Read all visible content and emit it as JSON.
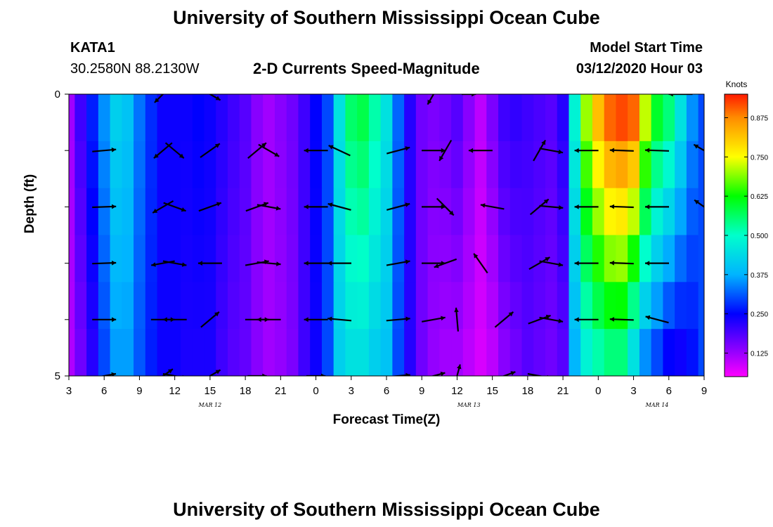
{
  "header": {
    "title": "University of Southern Mississippi Ocean Cube",
    "station_id": "KATA1",
    "station_coords": "30.2580N 88.2130W",
    "plot_title": "2-D Currents Speed-Magnitude",
    "model_start_label": "Model Start Time",
    "model_start_value": "03/12/2020 Hour 03"
  },
  "footer": {
    "title": "University of Southern Mississippi Ocean Cube"
  },
  "chart_data": {
    "type": "heatmap",
    "title": "2-D Currents Speed-Magnitude",
    "xlabel": "Forecast Time(Z)",
    "ylabel": "Depth (ft)",
    "x_tick_labels": [
      "3",
      "6",
      "9",
      "12",
      "15",
      "18",
      "21",
      "0",
      "3",
      "6",
      "9",
      "12",
      "15",
      "18",
      "21",
      "0",
      "3",
      "6",
      "9"
    ],
    "date_labels": [
      {
        "label": "MAR 12",
        "hours": 12
      },
      {
        "label": "MAR 13",
        "hours": 34
      },
      {
        "label": "MAR 14",
        "hours": 50
      }
    ],
    "xlim_hours_from_start": [
      0,
      54
    ],
    "y_tick_labels": [
      "0",
      "5"
    ],
    "ylim_ft": [
      0,
      5
    ],
    "depth_levels_ft": [
      0,
      1,
      2,
      3,
      4,
      5
    ],
    "colorbar": {
      "label": "Knots",
      "ticks": [
        "0.125",
        "0.250",
        "0.375",
        "0.500",
        "0.625",
        "0.750",
        "0.875"
      ],
      "range": [
        0.05,
        0.95
      ]
    },
    "speed_profile": {
      "hours": [
        0,
        1,
        2,
        3,
        4,
        5,
        6,
        7,
        8,
        9,
        10,
        11,
        12,
        13,
        14,
        15,
        16,
        17,
        18,
        19,
        20,
        21,
        22,
        23,
        24,
        25,
        26,
        27,
        28,
        29,
        30,
        31,
        32,
        33,
        34,
        35,
        36,
        37,
        38,
        39,
        40,
        41,
        42,
        43,
        44,
        45,
        46,
        47,
        48,
        49,
        50,
        51,
        52,
        53,
        54
      ],
      "surface_knots": [
        0.12,
        0.2,
        0.27,
        0.35,
        0.42,
        0.4,
        0.33,
        0.28,
        0.24,
        0.24,
        0.24,
        0.25,
        0.24,
        0.22,
        0.2,
        0.18,
        0.14,
        0.12,
        0.14,
        0.16,
        0.2,
        0.25,
        0.3,
        0.45,
        0.56,
        0.58,
        0.52,
        0.45,
        0.32,
        0.22,
        0.16,
        0.15,
        0.16,
        0.18,
        0.14,
        0.1,
        0.15,
        0.2,
        0.21,
        0.2,
        0.19,
        0.18,
        0.22,
        0.48,
        0.7,
        0.82,
        0.9,
        0.92,
        0.9,
        0.72,
        0.6,
        0.55,
        0.45,
        0.35,
        0.3
      ],
      "bottom_knots": [
        0.11,
        0.16,
        0.22,
        0.3,
        0.36,
        0.36,
        0.31,
        0.27,
        0.24,
        0.24,
        0.23,
        0.23,
        0.23,
        0.2,
        0.18,
        0.17,
        0.14,
        0.12,
        0.13,
        0.15,
        0.2,
        0.24,
        0.3,
        0.42,
        0.45,
        0.45,
        0.42,
        0.4,
        0.3,
        0.22,
        0.16,
        0.13,
        0.12,
        0.12,
        0.1,
        0.08,
        0.1,
        0.14,
        0.16,
        0.18,
        0.17,
        0.16,
        0.18,
        0.38,
        0.48,
        0.52,
        0.55,
        0.55,
        0.45,
        0.35,
        0.3,
        0.25,
        0.24,
        0.26,
        0.3
      ]
    },
    "arrows": [
      {
        "hours": 8,
        "depth_ft": 0,
        "dir_deg": -135,
        "len": 1.0
      },
      {
        "hours": 12,
        "depth_ft": 0,
        "dir_deg": -30,
        "len": 1.0
      },
      {
        "hours": 31,
        "depth_ft": 0,
        "dir_deg": -120,
        "len": 1.0
      },
      {
        "hours": 34,
        "depth_ft": 0,
        "dir_deg": 0,
        "len": 0.6
      },
      {
        "hours": 52,
        "depth_ft": 0,
        "dir_deg": 180,
        "len": 1.0
      },
      {
        "hours": 3,
        "depth_ft": 1,
        "dir_deg": 5,
        "len": 1.0
      },
      {
        "hours": 8,
        "depth_ft": 1,
        "dir_deg": -140,
        "len": 1.0
      },
      {
        "hours": 9,
        "depth_ft": 1,
        "dir_deg": -40,
        "len": 1.0
      },
      {
        "hours": 12,
        "depth_ft": 1,
        "dir_deg": 35,
        "len": 1.0
      },
      {
        "hours": 16,
        "depth_ft": 1,
        "dir_deg": 40,
        "len": 1.0
      },
      {
        "hours": 17,
        "depth_ft": 1,
        "dir_deg": -30,
        "len": 1.0
      },
      {
        "hours": 21,
        "depth_ft": 1,
        "dir_deg": 180,
        "len": 1.0
      },
      {
        "hours": 23,
        "depth_ft": 1,
        "dir_deg": 155,
        "len": 1.0
      },
      {
        "hours": 28,
        "depth_ft": 1,
        "dir_deg": 15,
        "len": 1.0
      },
      {
        "hours": 31,
        "depth_ft": 1,
        "dir_deg": 0,
        "len": 1.0
      },
      {
        "hours": 32,
        "depth_ft": 1,
        "dir_deg": -120,
        "len": 1.0
      },
      {
        "hours": 35,
        "depth_ft": 1,
        "dir_deg": 180,
        "len": 1.0
      },
      {
        "hours": 40,
        "depth_ft": 1,
        "dir_deg": 60,
        "len": 1.0
      },
      {
        "hours": 41,
        "depth_ft": 1,
        "dir_deg": -10,
        "len": 1.0
      },
      {
        "hours": 44,
        "depth_ft": 1,
        "dir_deg": 180,
        "len": 1.0
      },
      {
        "hours": 47,
        "depth_ft": 1,
        "dir_deg": 178,
        "len": 1.0
      },
      {
        "hours": 50,
        "depth_ft": 1,
        "dir_deg": 178,
        "len": 1.0
      },
      {
        "hours": 54,
        "depth_ft": 1,
        "dir_deg": 150,
        "len": 1.0
      },
      {
        "hours": 3,
        "depth_ft": 2,
        "dir_deg": 2,
        "len": 1.0
      },
      {
        "hours": 8,
        "depth_ft": 2,
        "dir_deg": -150,
        "len": 1.0
      },
      {
        "hours": 9,
        "depth_ft": 2,
        "dir_deg": -20,
        "len": 1.0
      },
      {
        "hours": 12,
        "depth_ft": 2,
        "dir_deg": 20,
        "len": 1.0
      },
      {
        "hours": 16,
        "depth_ft": 2,
        "dir_deg": 20,
        "len": 1.0
      },
      {
        "hours": 17,
        "depth_ft": 2,
        "dir_deg": -10,
        "len": 1.0
      },
      {
        "hours": 21,
        "depth_ft": 2,
        "dir_deg": 180,
        "len": 1.0
      },
      {
        "hours": 23,
        "depth_ft": 2,
        "dir_deg": 165,
        "len": 1.0
      },
      {
        "hours": 28,
        "depth_ft": 2,
        "dir_deg": 15,
        "len": 1.0
      },
      {
        "hours": 31,
        "depth_ft": 2,
        "dir_deg": 0,
        "len": 1.0
      },
      {
        "hours": 32,
        "depth_ft": 2,
        "dir_deg": -45,
        "len": 1.0
      },
      {
        "hours": 36,
        "depth_ft": 2,
        "dir_deg": 170,
        "len": 1.0
      },
      {
        "hours": 40,
        "depth_ft": 2,
        "dir_deg": 40,
        "len": 1.0
      },
      {
        "hours": 41,
        "depth_ft": 2,
        "dir_deg": -5,
        "len": 1.0
      },
      {
        "hours": 44,
        "depth_ft": 2,
        "dir_deg": 180,
        "len": 1.0
      },
      {
        "hours": 47,
        "depth_ft": 2,
        "dir_deg": 178,
        "len": 1.0
      },
      {
        "hours": 50,
        "depth_ft": 2,
        "dir_deg": 180,
        "len": 1.0
      },
      {
        "hours": 54,
        "depth_ft": 2,
        "dir_deg": 145,
        "len": 1.0
      },
      {
        "hours": 3,
        "depth_ft": 3,
        "dir_deg": 2,
        "len": 1.0
      },
      {
        "hours": 8,
        "depth_ft": 3,
        "dir_deg": -170,
        "len": 1.0
      },
      {
        "hours": 9,
        "depth_ft": 3,
        "dir_deg": -10,
        "len": 1.0
      },
      {
        "hours": 12,
        "depth_ft": 3,
        "dir_deg": 180,
        "len": 1.0
      },
      {
        "hours": 16,
        "depth_ft": 3,
        "dir_deg": 10,
        "len": 1.0
      },
      {
        "hours": 17,
        "depth_ft": 3,
        "dir_deg": -5,
        "len": 1.0
      },
      {
        "hours": 21,
        "depth_ft": 3,
        "dir_deg": 180,
        "len": 1.0
      },
      {
        "hours": 23,
        "depth_ft": 3,
        "dir_deg": 180,
        "len": 1.0
      },
      {
        "hours": 28,
        "depth_ft": 3,
        "dir_deg": 10,
        "len": 1.0
      },
      {
        "hours": 31,
        "depth_ft": 3,
        "dir_deg": 0,
        "len": 1.0
      },
      {
        "hours": 32,
        "depth_ft": 3,
        "dir_deg": -160,
        "len": 1.0
      },
      {
        "hours": 35,
        "depth_ft": 3,
        "dir_deg": 125,
        "len": 1.0
      },
      {
        "hours": 40,
        "depth_ft": 3,
        "dir_deg": 30,
        "len": 1.0
      },
      {
        "hours": 41,
        "depth_ft": 3,
        "dir_deg": -10,
        "len": 1.0
      },
      {
        "hours": 44,
        "depth_ft": 3,
        "dir_deg": 180,
        "len": 1.0
      },
      {
        "hours": 47,
        "depth_ft": 3,
        "dir_deg": 178,
        "len": 1.0
      },
      {
        "hours": 50,
        "depth_ft": 3,
        "dir_deg": 180,
        "len": 1.0
      },
      {
        "hours": 3,
        "depth_ft": 4,
        "dir_deg": 0,
        "len": 1.0
      },
      {
        "hours": 8,
        "depth_ft": 4,
        "dir_deg": 0,
        "len": 1.0
      },
      {
        "hours": 9,
        "depth_ft": 4,
        "dir_deg": 180,
        "len": 1.0
      },
      {
        "hours": 12,
        "depth_ft": 4,
        "dir_deg": 40,
        "len": 1.0
      },
      {
        "hours": 16,
        "depth_ft": 4,
        "dir_deg": 0,
        "len": 1.0
      },
      {
        "hours": 17,
        "depth_ft": 4,
        "dir_deg": 180,
        "len": 1.0
      },
      {
        "hours": 21,
        "depth_ft": 4,
        "dir_deg": 180,
        "len": 1.0
      },
      {
        "hours": 23,
        "depth_ft": 4,
        "dir_deg": 175,
        "len": 1.0
      },
      {
        "hours": 28,
        "depth_ft": 4,
        "dir_deg": 5,
        "len": 1.0
      },
      {
        "hours": 31,
        "depth_ft": 4,
        "dir_deg": 10,
        "len": 1.0
      },
      {
        "hours": 33,
        "depth_ft": 4,
        "dir_deg": 95,
        "len": 1.0
      },
      {
        "hours": 37,
        "depth_ft": 4,
        "dir_deg": 40,
        "len": 1.0
      },
      {
        "hours": 40,
        "depth_ft": 4,
        "dir_deg": 20,
        "len": 1.0
      },
      {
        "hours": 41,
        "depth_ft": 4,
        "dir_deg": -10,
        "len": 1.0
      },
      {
        "hours": 44,
        "depth_ft": 4,
        "dir_deg": 180,
        "len": 1.0
      },
      {
        "hours": 47,
        "depth_ft": 4,
        "dir_deg": 178,
        "len": 1.0
      },
      {
        "hours": 50,
        "depth_ft": 4,
        "dir_deg": 165,
        "len": 1.0
      },
      {
        "hours": 3,
        "depth_ft": 5,
        "dir_deg": 10,
        "len": 1.0
      },
      {
        "hours": 8,
        "depth_ft": 5,
        "dir_deg": 35,
        "len": 1.0
      },
      {
        "hours": 9,
        "depth_ft": 5,
        "dir_deg": -10,
        "len": 1.0
      },
      {
        "hours": 12,
        "depth_ft": 5,
        "dir_deg": 30,
        "len": 1.0
      },
      {
        "hours": 16,
        "depth_ft": 5,
        "dir_deg": 0,
        "len": 0.8
      },
      {
        "hours": 21,
        "depth_ft": 5,
        "dir_deg": 0,
        "len": 0.8
      },
      {
        "hours": 28,
        "depth_ft": 5,
        "dir_deg": 5,
        "len": 1.0
      },
      {
        "hours": 31,
        "depth_ft": 5,
        "dir_deg": 15,
        "len": 1.0
      },
      {
        "hours": 33,
        "depth_ft": 5,
        "dir_deg": 75,
        "len": 1.0
      },
      {
        "hours": 37,
        "depth_ft": 5,
        "dir_deg": 20,
        "len": 1.0
      },
      {
        "hours": 40,
        "depth_ft": 5,
        "dir_deg": -10,
        "len": 1.0
      }
    ]
  }
}
